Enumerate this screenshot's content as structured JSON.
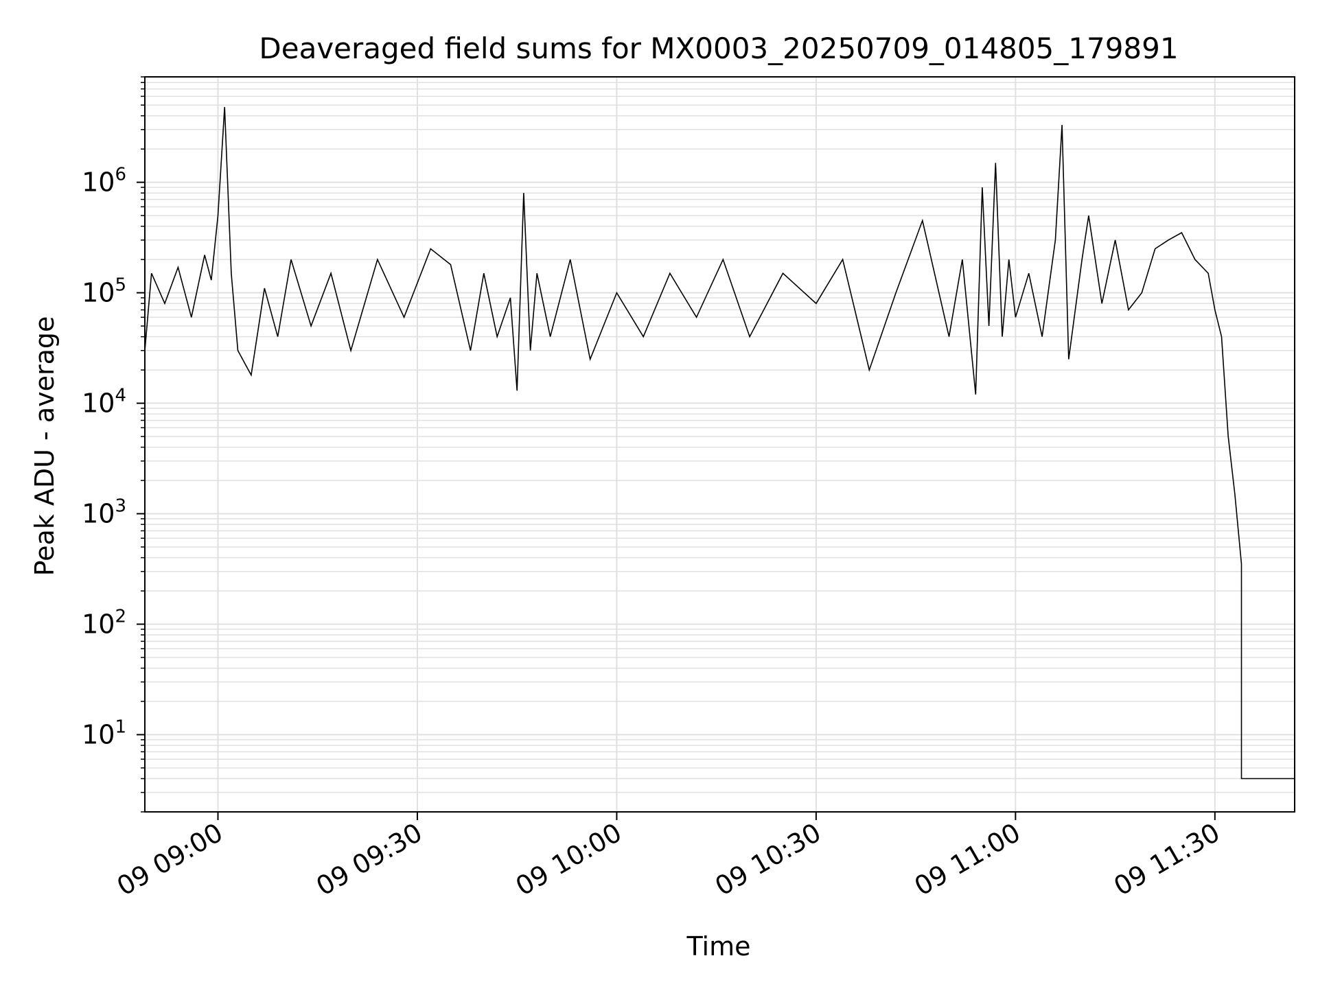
{
  "chart_data": {
    "type": "line",
    "title": "Deaveraged field sums for MX0003_20250709_014805_179891",
    "xlabel": "Time",
    "ylabel": "Peak ADU - average",
    "y_scale": "log",
    "xlim": [
      "09 08:49",
      "09 11:42"
    ],
    "ylim": [
      2,
      9000000
    ],
    "grid": true,
    "legend": "none",
    "x_ticks": [
      {
        "value": "09 09:00",
        "label": "09 09:00"
      },
      {
        "value": "09 09:30",
        "label": "09 09:30"
      },
      {
        "value": "09 10:00",
        "label": "09 10:00"
      },
      {
        "value": "09 10:30",
        "label": "09 10:30"
      },
      {
        "value": "09 11:00",
        "label": "09 11:00"
      },
      {
        "value": "09 11:30",
        "label": "09 11:30"
      }
    ],
    "y_ticks": [
      {
        "value": 10,
        "base": "10",
        "exp": "1"
      },
      {
        "value": 100,
        "base": "10",
        "exp": "2"
      },
      {
        "value": 1000,
        "base": "10",
        "exp": "3"
      },
      {
        "value": 10000,
        "base": "10",
        "exp": "4"
      },
      {
        "value": 100000,
        "base": "10",
        "exp": "5"
      },
      {
        "value": 1000000,
        "base": "10",
        "exp": "6"
      }
    ],
    "colors": {
      "line": "#000000",
      "grid": "#e0e0e0",
      "axes": "#000000"
    },
    "series": [
      {
        "x": [
          "09 08:49",
          "09 08:50",
          "09 08:52",
          "09 08:54",
          "09 08:56",
          "09 08:58",
          "09 08:59",
          "09 09:00",
          "09 09:01",
          "09 09:02",
          "09 09:03",
          "09 09:05",
          "09 09:07",
          "09 09:09",
          "09 09:11",
          "09 09:14",
          "09 09:17",
          "09 09:20",
          "09 09:24",
          "09 09:28",
          "09 09:32",
          "09 09:35",
          "09 09:38",
          "09 09:40",
          "09 09:42",
          "09 09:44",
          "09 09:45",
          "09 09:46",
          "09 09:47",
          "09 09:48",
          "09 09:50",
          "09 09:53",
          "09 09:56",
          "09 10:00",
          "09 10:04",
          "09 10:08",
          "09 10:12",
          "09 10:16",
          "09 10:20",
          "09 10:25",
          "09 10:30",
          "09 10:34",
          "09 10:38",
          "09 10:42",
          "09 10:46",
          "09 10:50",
          "09 10:52",
          "09 10:54",
          "09 10:55",
          "09 10:56",
          "09 10:57",
          "09 10:58",
          "09 10:59",
          "09 11:00",
          "09 11:02",
          "09 11:04",
          "09 11:06",
          "09 11:07",
          "09 11:08",
          "09 11:10",
          "09 11:11",
          "09 11:13",
          "09 11:15",
          "09 11:17",
          "09 11:19",
          "09 11:21",
          "09 11:23",
          "09 11:25",
          "09 11:27",
          "09 11:29",
          "09 11:30",
          "09 11:31",
          "09 11:32",
          "09 11:33",
          "09 11:34",
          "09 11:34",
          "09 11:35",
          "09 11:37",
          "09 11:39",
          "09 11:42"
        ],
        "y": [
          30000,
          150000,
          80000,
          170000,
          60000,
          220000,
          130000,
          500000,
          4800000,
          150000,
          30000,
          18000,
          110000,
          40000,
          200000,
          50000,
          150000,
          30000,
          200000,
          60000,
          250000,
          180000,
          30000,
          150000,
          40000,
          90000,
          13000,
          800000,
          30000,
          150000,
          40000,
          200000,
          25000,
          100000,
          40000,
          150000,
          60000,
          200000,
          40000,
          150000,
          80000,
          200000,
          20000,
          100000,
          450000,
          40000,
          200000,
          12000,
          900000,
          50000,
          1500000,
          40000,
          200000,
          60000,
          150000,
          40000,
          300000,
          3300000,
          25000,
          200000,
          500000,
          80000,
          300000,
          70000,
          100000,
          250000,
          300000,
          350000,
          200000,
          150000,
          70000,
          40000,
          5000,
          1500,
          350,
          4,
          4,
          4,
          4,
          4
        ]
      }
    ]
  }
}
